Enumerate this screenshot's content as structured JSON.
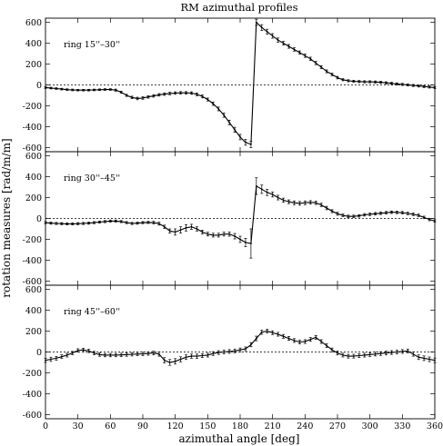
{
  "chart_data": {
    "type": "line",
    "title": "RM azimuthal profiles",
    "xlabel": "azimuthal angle [deg]",
    "ylabel": "rotation measures [rad/m/m]",
    "xlim": [
      0,
      360
    ],
    "ylim": [
      -640,
      640
    ],
    "xticks": [
      "0",
      "30",
      "60",
      "90",
      "120",
      "150",
      "180",
      "210",
      "240",
      "270",
      "300",
      "330",
      "360"
    ],
    "yticks": [
      "-600",
      "-400",
      "-200",
      "0",
      "200",
      "400",
      "600"
    ],
    "zero_line": "dotted",
    "grid": false,
    "panels": [
      {
        "label": "ring 15''–30''",
        "x": [
          0,
          5,
          10,
          15,
          20,
          25,
          30,
          35,
          40,
          45,
          50,
          55,
          60,
          65,
          70,
          75,
          80,
          85,
          90,
          95,
          100,
          105,
          110,
          115,
          120,
          125,
          130,
          135,
          140,
          145,
          150,
          155,
          160,
          165,
          170,
          175,
          180,
          185,
          190,
          195,
          200,
          205,
          210,
          215,
          220,
          225,
          230,
          235,
          240,
          245,
          250,
          255,
          260,
          265,
          270,
          275,
          280,
          285,
          290,
          295,
          300,
          305,
          310,
          315,
          320,
          325,
          330,
          335,
          340,
          345,
          350,
          355,
          360
        ],
        "y": [
          -25,
          -30,
          -35,
          -40,
          -45,
          -48,
          -50,
          -50,
          -50,
          -48,
          -46,
          -44,
          -44,
          -50,
          -70,
          -100,
          -120,
          -130,
          -125,
          -115,
          -105,
          -95,
          -88,
          -82,
          -78,
          -76,
          -76,
          -78,
          -90,
          -110,
          -140,
          -180,
          -230,
          -290,
          -360,
          -430,
          -500,
          -550,
          -570,
          600,
          550,
          510,
          470,
          430,
          400,
          370,
          340,
          310,
          280,
          250,
          210,
          170,
          130,
          100,
          70,
          50,
          40,
          35,
          32,
          30,
          30,
          28,
          25,
          20,
          15,
          10,
          5,
          0,
          -5,
          -10,
          -15,
          -20,
          -25
        ],
        "err": [
          8,
          8,
          8,
          8,
          8,
          8,
          8,
          8,
          8,
          8,
          8,
          8,
          8,
          10,
          10,
          10,
          12,
          12,
          12,
          12,
          12,
          12,
          12,
          12,
          12,
          12,
          12,
          12,
          14,
          14,
          14,
          16,
          18,
          20,
          22,
          24,
          26,
          28,
          30,
          30,
          28,
          24,
          22,
          20,
          18,
          18,
          16,
          16,
          16,
          16,
          16,
          14,
          14,
          12,
          12,
          10,
          10,
          10,
          10,
          10,
          10,
          10,
          10,
          10,
          10,
          10,
          10,
          10,
          10,
          10,
          10,
          10,
          10
        ]
      },
      {
        "label": "ring 30''–45''",
        "x": [
          0,
          5,
          10,
          15,
          20,
          25,
          30,
          35,
          40,
          45,
          50,
          55,
          60,
          65,
          70,
          75,
          80,
          85,
          90,
          95,
          100,
          105,
          110,
          115,
          120,
          125,
          130,
          135,
          140,
          145,
          150,
          155,
          160,
          165,
          170,
          175,
          180,
          185,
          190,
          195,
          200,
          205,
          210,
          215,
          220,
          225,
          230,
          235,
          240,
          245,
          250,
          255,
          260,
          265,
          270,
          275,
          280,
          285,
          290,
          295,
          300,
          305,
          310,
          315,
          320,
          325,
          330,
          335,
          340,
          345,
          350,
          355,
          360
        ],
        "y": [
          -40,
          -45,
          -48,
          -50,
          -52,
          -52,
          -50,
          -48,
          -45,
          -40,
          -35,
          -30,
          -25,
          -25,
          -30,
          -40,
          -48,
          -45,
          -40,
          -38,
          -40,
          -50,
          -80,
          -120,
          -130,
          -110,
          -90,
          -80,
          -100,
          -130,
          -150,
          -160,
          -160,
          -150,
          -150,
          -170,
          -200,
          -230,
          -240,
          310,
          280,
          250,
          230,
          200,
          175,
          160,
          150,
          145,
          150,
          155,
          150,
          130,
          100,
          70,
          45,
          30,
          20,
          20,
          25,
          35,
          40,
          45,
          50,
          55,
          60,
          58,
          55,
          48,
          40,
          30,
          10,
          -10,
          -25
        ],
        "err": [
          10,
          10,
          10,
          10,
          10,
          10,
          10,
          10,
          10,
          10,
          10,
          10,
          10,
          10,
          10,
          10,
          10,
          10,
          10,
          10,
          12,
          14,
          16,
          20,
          30,
          30,
          30,
          24,
          20,
          18,
          18,
          18,
          18,
          18,
          20,
          26,
          30,
          40,
          140,
          80,
          40,
          30,
          24,
          22,
          20,
          18,
          18,
          18,
          18,
          16,
          16,
          16,
          16,
          14,
          14,
          12,
          12,
          12,
          12,
          12,
          12,
          12,
          12,
          12,
          12,
          12,
          12,
          12,
          12,
          12,
          12,
          12,
          12
        ]
      },
      {
        "label": "ring 45''–60''",
        "x": [
          0,
          5,
          10,
          15,
          20,
          25,
          30,
          35,
          40,
          45,
          50,
          55,
          60,
          65,
          70,
          75,
          80,
          85,
          90,
          95,
          100,
          105,
          110,
          115,
          120,
          125,
          130,
          135,
          140,
          145,
          150,
          155,
          160,
          165,
          170,
          175,
          180,
          185,
          190,
          195,
          200,
          205,
          210,
          215,
          220,
          225,
          230,
          235,
          240,
          245,
          250,
          255,
          260,
          265,
          270,
          275,
          280,
          285,
          290,
          295,
          300,
          305,
          310,
          315,
          320,
          325,
          330,
          335,
          340,
          345,
          350,
          355,
          360
        ],
        "y": [
          -80,
          -70,
          -60,
          -45,
          -30,
          -10,
          15,
          20,
          10,
          -10,
          -25,
          -30,
          -30,
          -30,
          -28,
          -25,
          -22,
          -20,
          -18,
          -15,
          -10,
          -20,
          -80,
          -100,
          -90,
          -70,
          -50,
          -40,
          -40,
          -35,
          -30,
          -15,
          -5,
          0,
          5,
          10,
          20,
          30,
          70,
          130,
          190,
          200,
          185,
          170,
          150,
          130,
          110,
          95,
          100,
          120,
          140,
          100,
          60,
          20,
          -10,
          -30,
          -40,
          -40,
          -35,
          -30,
          -25,
          -20,
          -15,
          -10,
          -5,
          0,
          5,
          10,
          -20,
          -50,
          -60,
          -70,
          -80
        ],
        "err": [
          20,
          20,
          18,
          18,
          18,
          16,
          16,
          16,
          16,
          16,
          16,
          16,
          16,
          16,
          16,
          16,
          16,
          16,
          16,
          16,
          18,
          20,
          26,
          28,
          26,
          24,
          22,
          20,
          20,
          18,
          18,
          18,
          18,
          18,
          18,
          18,
          18,
          18,
          20,
          22,
          20,
          18,
          18,
          18,
          18,
          18,
          18,
          18,
          18,
          18,
          18,
          18,
          18,
          18,
          18,
          18,
          18,
          18,
          18,
          18,
          18,
          18,
          18,
          18,
          18,
          18,
          18,
          18,
          20,
          22,
          22,
          22,
          22
        ]
      }
    ]
  }
}
